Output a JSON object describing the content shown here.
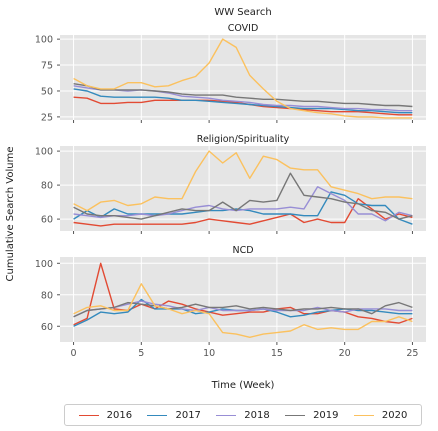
{
  "chart_data": {
    "type": "line",
    "title": "WW Search",
    "ylabel": "Cumulative Search Volume",
    "xlabel": "Time (Week)",
    "x": [
      0,
      1,
      2,
      3,
      4,
      5,
      6,
      7,
      8,
      9,
      10,
      11,
      12,
      13,
      14,
      15,
      16,
      17,
      18,
      19,
      20,
      21,
      22,
      23,
      24,
      25
    ],
    "xticks": [
      0,
      5,
      10,
      15,
      20,
      25
    ],
    "xlim": [
      -1,
      26
    ],
    "legend": {
      "placement": "bottom",
      "entries": [
        "2016",
        "2017",
        "2018",
        "2019",
        "2020"
      ]
    },
    "colors": {
      "2016": "#e24a33",
      "2017": "#348abd",
      "2018": "#988ed5",
      "2019": "#777777",
      "2020": "#fbc15e"
    },
    "background": "#e5e5e5",
    "grid": true,
    "panels": [
      {
        "title": "COVID",
        "ylim": [
          22,
          104
        ],
        "yticks": [
          25,
          50,
          75,
          100
        ],
        "series": [
          {
            "name": "2016",
            "values": [
              44,
              43,
              38,
              38,
              39,
              39,
              41,
              41,
              41,
              41,
              41,
              40,
              39,
              37,
              35,
              34,
              33,
              32,
              31,
              30,
              30,
              30,
              29,
              28,
              27,
              27
            ]
          },
          {
            "name": "2017",
            "values": [
              52,
              50,
              45,
              44,
              44,
              44,
              44,
              43,
              41,
              41,
              40,
              39,
              38,
              37,
              36,
              35,
              34,
              33,
              33,
              33,
              32,
              31,
              31,
              30,
              29,
              29
            ]
          },
          {
            "name": "2018",
            "values": [
              55,
              53,
              51,
              51,
              50,
              51,
              50,
              48,
              45,
              44,
              43,
              41,
              40,
              39,
              37,
              36,
              36,
              35,
              35,
              34,
              33,
              33,
              32,
              32,
              31,
              31
            ]
          },
          {
            "name": "2019",
            "values": [
              57,
              55,
              51,
              51,
              51,
              51,
              50,
              49,
              47,
              46,
              46,
              46,
              44,
              43,
              42,
              42,
              41,
              40,
              40,
              39,
              38,
              38,
              37,
              36,
              36,
              35
            ]
          },
          {
            "name": "2020",
            "values": [
              62,
              55,
              52,
              52,
              58,
              58,
              54,
              55,
              60,
              64,
              77,
              100,
              92,
              65,
              52,
              40,
              33,
              31,
              29,
              28,
              26,
              25,
              25,
              24,
              24,
              24
            ]
          }
        ]
      },
      {
        "title": "Religion/Spirituality",
        "ylim": [
          53,
          103
        ],
        "yticks": [
          60,
          80,
          100
        ],
        "series": [
          {
            "name": "2016",
            "values": [
              58,
              57,
              56,
              57,
              57,
              57,
              57,
              57,
              57,
              58,
              60,
              59,
              58,
              57,
              59,
              61,
              63,
              58,
              60,
              58,
              58,
              72,
              66,
              60,
              63,
              61
            ]
          },
          {
            "name": "2017",
            "values": [
              60,
              65,
              61,
              66,
              63,
              63,
              63,
              63,
              63,
              64,
              65,
              65,
              66,
              65,
              63,
              63,
              63,
              62,
              62,
              76,
              74,
              69,
              68,
              68,
              60,
              57
            ]
          },
          {
            "name": "2018",
            "values": [
              63,
              62,
              61,
              62,
              62,
              63,
              62,
              63,
              65,
              67,
              68,
              66,
              65,
              66,
              66,
              66,
              67,
              66,
              79,
              75,
              71,
              63,
              63,
              59,
              64,
              62
            ]
          },
          {
            "name": "2019",
            "values": [
              67,
              63,
              62,
              62,
              61,
              60,
              62,
              64,
              66,
              65,
              65,
              70,
              65,
              71,
              70,
              71,
              87,
              74,
              73,
              72,
              70,
              69,
              65,
              64,
              60,
              62
            ]
          },
          {
            "name": "2020",
            "values": [
              69,
              65,
              70,
              71,
              68,
              69,
              73,
              72,
              72,
              88,
              100,
              93,
              99,
              84,
              97,
              95,
              90,
              89,
              89,
              79,
              77,
              75,
              72,
              73,
              73,
              72
            ]
          }
        ]
      },
      {
        "title": "NCD",
        "ylim": [
          50,
          104
        ],
        "yticks": [
          60,
          80,
          100
        ],
        "series": [
          {
            "name": "2016",
            "values": [
              61,
              65,
              100,
              71,
              70,
              74,
              71,
              76,
              74,
              71,
              69,
              67,
              68,
              69,
              69,
              71,
              72,
              68,
              68,
              70,
              69,
              66,
              65,
              63,
              62,
              65
            ]
          },
          {
            "name": "2017",
            "values": [
              60,
              64,
              69,
              68,
              69,
              77,
              71,
              71,
              71,
              68,
              69,
              71,
              70,
              70,
              71,
              69,
              66,
              67,
              69,
              70,
              71,
              70,
              70,
              69,
              68,
              68
            ]
          },
          {
            "name": "2018",
            "values": [
              66,
              70,
              71,
              72,
              74,
              76,
              74,
              73,
              71,
              70,
              72,
              70,
              70,
              70,
              71,
              70,
              70,
              70,
              72,
              70,
              69,
              71,
              71,
              71,
              70,
              70
            ]
          },
          {
            "name": "2019",
            "values": [
              66,
              70,
              71,
              72,
              75,
              74,
              73,
              71,
              72,
              74,
              72,
              72,
              73,
              71,
              72,
              71,
              70,
              71,
              71,
              72,
              71,
              71,
              68,
              73,
              75,
              72
            ]
          },
          {
            "name": "2020",
            "values": [
              68,
              72,
              73,
              70,
              70,
              87,
              73,
              71,
              68,
              70,
              68,
              56,
              55,
              53,
              55,
              56,
              57,
              61,
              58,
              59,
              58,
              58,
              63,
              63,
              66,
              63
            ]
          }
        ]
      }
    ]
  }
}
